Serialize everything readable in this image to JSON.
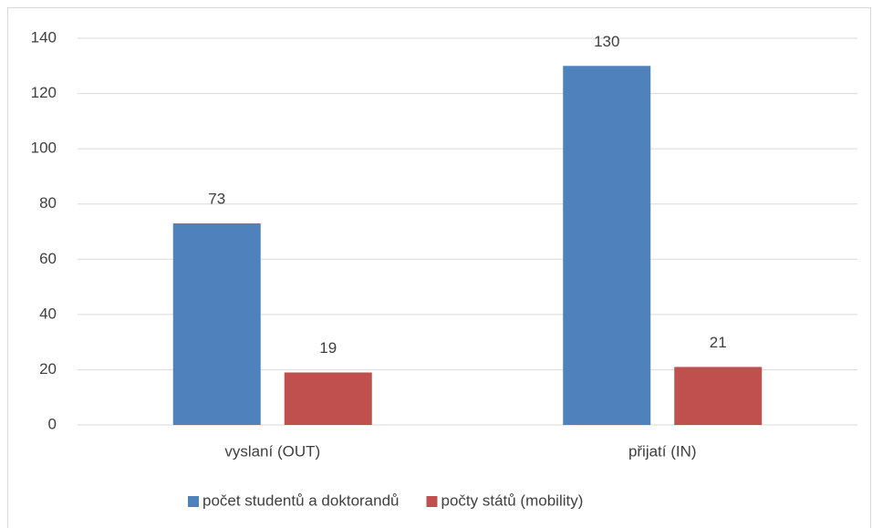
{
  "chart_data": {
    "type": "bar",
    "categories": [
      "vyslaní (OUT)",
      "přijatí (IN)"
    ],
    "series": [
      {
        "name": "počet studentů a doktorandů",
        "color": "#4f81bd",
        "values": [
          73,
          130
        ]
      },
      {
        "name": "počty států (mobility)",
        "color": "#c0504d",
        "values": [
          19,
          21
        ]
      }
    ],
    "ylim": [
      0,
      140
    ],
    "yticks": [
      0,
      20,
      40,
      60,
      80,
      100,
      120,
      140
    ],
    "grid": true,
    "data_labels": true,
    "legend": "bottom"
  }
}
